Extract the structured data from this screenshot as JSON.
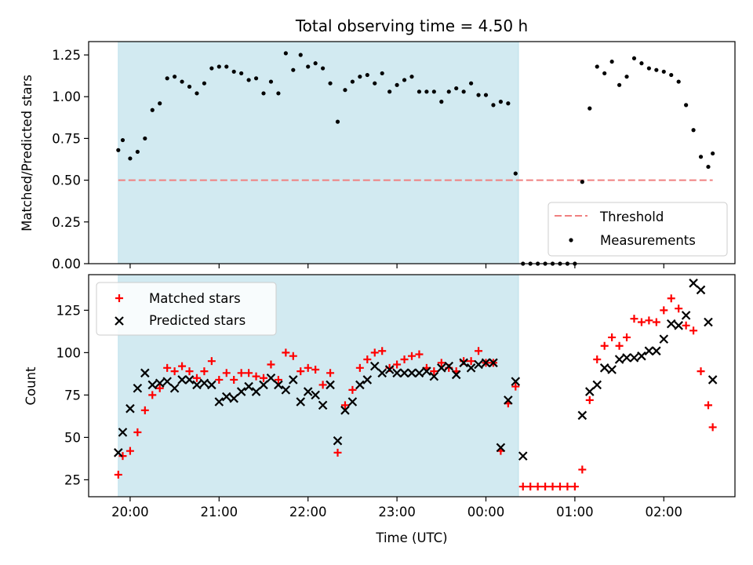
{
  "chart_data": [
    {
      "type": "scatter",
      "title": "Total observing time = 4.50 h",
      "xlabel": "",
      "ylabel": "Matched/Predicted stars",
      "ylim": [
        0,
        1.33
      ],
      "yticks": [
        0,
        0.25,
        0.5,
        0.75,
        1.0,
        1.25
      ],
      "ytick_labels": [
        "0.00",
        "0.25",
        "0.50",
        "0.75",
        "1.00",
        "1.25"
      ],
      "legend": {
        "placement": "lower right",
        "entries": [
          "Threshold",
          "Measurements"
        ]
      },
      "threshold": {
        "name": "Threshold",
        "value": 0.5,
        "x_start": "19:52",
        "x_end": "02:33",
        "color": "#f08080"
      },
      "shaded_span": {
        "start": "19:52",
        "end": "00:22",
        "color": "#add8e6"
      },
      "series": [
        {
          "name": "Measurements",
          "color": "#000000",
          "points": [
            [
              "19:52",
              0.68
            ],
            [
              "19:55",
              0.74
            ],
            [
              "20:00",
              0.63
            ],
            [
              "20:05",
              0.67
            ],
            [
              "20:10",
              0.75
            ],
            [
              "20:15",
              0.92
            ],
            [
              "20:20",
              0.96
            ],
            [
              "20:25",
              1.11
            ],
            [
              "20:30",
              1.12
            ],
            [
              "20:35",
              1.09
            ],
            [
              "20:40",
              1.06
            ],
            [
              "20:45",
              1.02
            ],
            [
              "20:50",
              1.08
            ],
            [
              "20:55",
              1.17
            ],
            [
              "21:00",
              1.18
            ],
            [
              "21:05",
              1.18
            ],
            [
              "21:10",
              1.15
            ],
            [
              "21:15",
              1.14
            ],
            [
              "21:20",
              1.1
            ],
            [
              "21:25",
              1.11
            ],
            [
              "21:30",
              1.02
            ],
            [
              "21:35",
              1.09
            ],
            [
              "21:40",
              1.02
            ],
            [
              "21:45",
              1.26
            ],
            [
              "21:50",
              1.16
            ],
            [
              "21:55",
              1.25
            ],
            [
              "22:00",
              1.18
            ],
            [
              "22:05",
              1.2
            ],
            [
              "22:10",
              1.17
            ],
            [
              "22:15",
              1.08
            ],
            [
              "22:20",
              0.85
            ],
            [
              "22:25",
              1.04
            ],
            [
              "22:30",
              1.09
            ],
            [
              "22:35",
              1.12
            ],
            [
              "22:40",
              1.13
            ],
            [
              "22:45",
              1.08
            ],
            [
              "22:50",
              1.14
            ],
            [
              "22:55",
              1.03
            ],
            [
              "23:00",
              1.07
            ],
            [
              "23:05",
              1.1
            ],
            [
              "23:10",
              1.12
            ],
            [
              "23:15",
              1.03
            ],
            [
              "23:20",
              1.03
            ],
            [
              "23:25",
              1.03
            ],
            [
              "23:30",
              0.97
            ],
            [
              "23:35",
              1.03
            ],
            [
              "23:40",
              1.05
            ],
            [
              "23:45",
              1.03
            ],
            [
              "23:50",
              1.08
            ],
            [
              "23:55",
              1.01
            ],
            [
              "00:00",
              1.01
            ],
            [
              "00:05",
              0.95
            ],
            [
              "00:10",
              0.97
            ],
            [
              "00:15",
              0.96
            ],
            [
              "00:20",
              0.54
            ],
            [
              "00:25",
              0.0
            ],
            [
              "00:30",
              0.0
            ],
            [
              "00:35",
              0.0
            ],
            [
              "00:40",
              0.0
            ],
            [
              "00:45",
              0.0
            ],
            [
              "00:50",
              0.0
            ],
            [
              "00:55",
              0.0
            ],
            [
              "01:00",
              0.0
            ],
            [
              "01:05",
              0.49
            ],
            [
              "01:10",
              0.93
            ],
            [
              "01:15",
              1.18
            ],
            [
              "01:20",
              1.14
            ],
            [
              "01:25",
              1.21
            ],
            [
              "01:30",
              1.07
            ],
            [
              "01:35",
              1.12
            ],
            [
              "01:40",
              1.23
            ],
            [
              "01:45",
              1.2
            ],
            [
              "01:50",
              1.17
            ],
            [
              "01:55",
              1.16
            ],
            [
              "02:00",
              1.15
            ],
            [
              "02:05",
              1.13
            ],
            [
              "02:10",
              1.09
            ],
            [
              "02:15",
              0.95
            ],
            [
              "02:20",
              0.8
            ],
            [
              "02:25",
              0.64
            ],
            [
              "02:30",
              0.58
            ],
            [
              "02:33",
              0.66
            ]
          ]
        }
      ]
    },
    {
      "type": "scatter",
      "title": "",
      "xlabel": "Time (UTC)",
      "ylabel": "Count",
      "ylim": [
        15,
        146
      ],
      "yticks": [
        25,
        50,
        75,
        100,
        125
      ],
      "ytick_labels": [
        "25",
        "50",
        "75",
        "100",
        "125"
      ],
      "xticks": [
        "20:00",
        "21:00",
        "22:00",
        "23:00",
        "00:00",
        "01:00",
        "02:00"
      ],
      "xlim": [
        "19:32",
        "02:48"
      ],
      "legend": {
        "placement": "upper left",
        "entries": [
          "Matched stars",
          "Predicted stars"
        ]
      },
      "shaded_span": {
        "start": "19:52",
        "end": "00:22",
        "color": "#add8e6"
      },
      "series": [
        {
          "name": "Matched stars",
          "marker": "+",
          "color": "#ff0000",
          "points": [
            [
              "19:52",
              28
            ],
            [
              "19:55",
              39
            ],
            [
              "20:00",
              42
            ],
            [
              "20:05",
              53
            ],
            [
              "20:10",
              66
            ],
            [
              "20:15",
              75
            ],
            [
              "20:20",
              79
            ],
            [
              "20:25",
              91
            ],
            [
              "20:30",
              89
            ],
            [
              "20:35",
              92
            ],
            [
              "20:40",
              89
            ],
            [
              "20:45",
              85
            ],
            [
              "20:50",
              89
            ],
            [
              "20:55",
              95
            ],
            [
              "21:00",
              84
            ],
            [
              "21:05",
              88
            ],
            [
              "21:10",
              84
            ],
            [
              "21:15",
              88
            ],
            [
              "21:20",
              88
            ],
            [
              "21:25",
              86
            ],
            [
              "21:30",
              85
            ],
            [
              "21:35",
              93
            ],
            [
              "21:40",
              84
            ],
            [
              "21:45",
              100
            ],
            [
              "21:50",
              98
            ],
            [
              "21:55",
              89
            ],
            [
              "22:00",
              91
            ],
            [
              "22:05",
              90
            ],
            [
              "22:10",
              81
            ],
            [
              "22:15",
              88
            ],
            [
              "22:20",
              41
            ],
            [
              "22:25",
              69
            ],
            [
              "22:30",
              78
            ],
            [
              "22:35",
              91
            ],
            [
              "22:40",
              96
            ],
            [
              "22:45",
              100
            ],
            [
              "22:50",
              101
            ],
            [
              "22:55",
              91
            ],
            [
              "23:00",
              93
            ],
            [
              "23:05",
              96
            ],
            [
              "23:10",
              98
            ],
            [
              "23:15",
              99
            ],
            [
              "23:20",
              91
            ],
            [
              "23:25",
              89
            ],
            [
              "23:30",
              94
            ],
            [
              "23:35",
              91
            ],
            [
              "23:40",
              89
            ],
            [
              "23:45",
              95
            ],
            [
              "23:50",
              95
            ],
            [
              "23:55",
              101
            ],
            [
              "00:00",
              94
            ],
            [
              "00:05",
              94
            ],
            [
              "00:10",
              42
            ],
            [
              "00:15",
              70
            ],
            [
              "00:20",
              80
            ],
            [
              "00:25",
              21
            ],
            [
              "00:30",
              21
            ],
            [
              "00:35",
              21
            ],
            [
              "00:40",
              21
            ],
            [
              "00:45",
              21
            ],
            [
              "00:50",
              21
            ],
            [
              "00:55",
              21
            ],
            [
              "01:00",
              21
            ],
            [
              "01:05",
              31
            ],
            [
              "01:10",
              72
            ],
            [
              "01:15",
              96
            ],
            [
              "01:20",
              104
            ],
            [
              "01:25",
              109
            ],
            [
              "01:30",
              104
            ],
            [
              "01:35",
              109
            ],
            [
              "01:40",
              120
            ],
            [
              "01:45",
              118
            ],
            [
              "01:50",
              119
            ],
            [
              "01:55",
              118
            ],
            [
              "02:00",
              125
            ],
            [
              "02:05",
              132
            ],
            [
              "02:10",
              126
            ],
            [
              "02:15",
              116
            ],
            [
              "02:20",
              113
            ],
            [
              "02:25",
              89
            ],
            [
              "02:30",
              69
            ],
            [
              "02:33",
              56
            ]
          ]
        },
        {
          "name": "Predicted stars",
          "marker": "x",
          "color": "#000000",
          "points": [
            [
              "19:52",
              41
            ],
            [
              "19:55",
              53
            ],
            [
              "20:00",
              67
            ],
            [
              "20:05",
              79
            ],
            [
              "20:10",
              88
            ],
            [
              "20:15",
              81
            ],
            [
              "20:20",
              82
            ],
            [
              "20:25",
              83
            ],
            [
              "20:30",
              79
            ],
            [
              "20:35",
              84
            ],
            [
              "20:40",
              84
            ],
            [
              "20:45",
              81
            ],
            [
              "20:50",
              82
            ],
            [
              "20:55",
              81
            ],
            [
              "21:00",
              71
            ],
            [
              "21:05",
              74
            ],
            [
              "21:10",
              73
            ],
            [
              "21:15",
              77
            ],
            [
              "21:20",
              80
            ],
            [
              "21:25",
              77
            ],
            [
              "21:30",
              81
            ],
            [
              "21:35",
              85
            ],
            [
              "21:40",
              81
            ],
            [
              "21:45",
              78
            ],
            [
              "21:50",
              84
            ],
            [
              "21:55",
              71
            ],
            [
              "22:00",
              77
            ],
            [
              "22:05",
              75
            ],
            [
              "22:10",
              69
            ],
            [
              "22:15",
              81
            ],
            [
              "22:20",
              48
            ],
            [
              "22:25",
              66
            ],
            [
              "22:30",
              71
            ],
            [
              "22:35",
              81
            ],
            [
              "22:40",
              84
            ],
            [
              "22:45",
              92
            ],
            [
              "22:50",
              88
            ],
            [
              "22:55",
              90
            ],
            [
              "23:00",
              88
            ],
            [
              "23:05",
              88
            ],
            [
              "23:10",
              88
            ],
            [
              "23:15",
              88
            ],
            [
              "23:20",
              89
            ],
            [
              "23:25",
              86
            ],
            [
              "23:30",
              91
            ],
            [
              "23:35",
              92
            ],
            [
              "23:40",
              87
            ],
            [
              "23:45",
              94
            ],
            [
              "23:50",
              91
            ],
            [
              "23:55",
              93
            ],
            [
              "00:00",
              94
            ],
            [
              "00:05",
              94
            ],
            [
              "00:10",
              44
            ],
            [
              "00:15",
              72
            ],
            [
              "00:20",
              83
            ],
            [
              "00:25",
              39
            ],
            [
              "01:05",
              63
            ],
            [
              "01:10",
              77
            ],
            [
              "01:15",
              81
            ],
            [
              "01:20",
              91
            ],
            [
              "01:25",
              90
            ],
            [
              "01:30",
              96
            ],
            [
              "01:35",
              97
            ],
            [
              "01:40",
              97
            ],
            [
              "01:45",
              98
            ],
            [
              "01:50",
              101
            ],
            [
              "01:55",
              101
            ],
            [
              "02:00",
              108
            ],
            [
              "02:05",
              117
            ],
            [
              "02:10",
              116
            ],
            [
              "02:15",
              122
            ],
            [
              "02:20",
              141
            ],
            [
              "02:25",
              137
            ],
            [
              "02:30",
              118
            ],
            [
              "02:33",
              84
            ]
          ]
        }
      ]
    }
  ]
}
